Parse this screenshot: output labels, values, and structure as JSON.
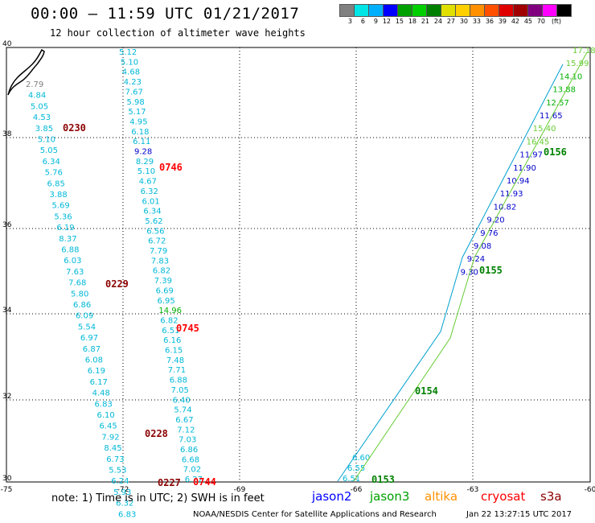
{
  "header": {
    "title": "00:00 – 11:59 UTC 01/21/2017",
    "subtitle": "12 hour collection of altimeter wave heights"
  },
  "legend": {
    "colors": [
      "#808080",
      "#00e5e5",
      "#00b0ff",
      "#0000ff",
      "#00a000",
      "#00d000",
      "#008000",
      "#e0e000",
      "#ffd000",
      "#ff9000",
      "#ff5000",
      "#e00000",
      "#a00000",
      "#800080",
      "#ff00ff",
      "#000000"
    ],
    "labels": [
      "3",
      "6",
      "9",
      "12",
      "15",
      "18",
      "21",
      "24",
      "27",
      "30",
      "33",
      "36",
      "39",
      "42",
      "45",
      "70",
      "(ft)"
    ]
  },
  "axes": {
    "x_ticks": [
      "-75",
      "-72",
      "-69",
      "-66",
      "-63",
      "-60"
    ],
    "y_ticks": [
      "40",
      "38",
      "36",
      "34",
      "32",
      "30"
    ]
  },
  "tracks": {
    "track_a": [
      "2.79",
      "4.84",
      "5.05",
      "4.53",
      "3.85",
      "5.10",
      "5.05",
      "6.34",
      "5.76",
      "6.85",
      "3.88",
      "5.69",
      "5.36",
      "6.19",
      "8.37",
      "6.88",
      "6.03",
      "7.63",
      "7.68",
      "5.80",
      "6.86",
      "6.09",
      "5.54",
      "6.97",
      "6.87",
      "6.08",
      "6.19",
      "6.17",
      "4.48",
      "6.83",
      "6.10",
      "6.45",
      "7.92",
      "8.45",
      "6.73",
      "5.53",
      "6.24",
      "5.93",
      "6.32",
      "6.83"
    ],
    "track_b": [
      "5.12",
      "5.10",
      "4.68",
      "4.23",
      "7.67",
      "5.98",
      "5.17",
      "4.95",
      "6.18",
      "6.11",
      "9.28",
      "8.29",
      "5.10",
      "4.67",
      "6.32",
      "6.01",
      "6.34",
      "5.62",
      "6.56",
      "6.72",
      "7.79",
      "7.83",
      "6.82",
      "7.39",
      "6.69",
      "6.95",
      "14.96",
      "6.82",
      "6.51",
      "6.16",
      "6.15",
      "7.48",
      "7.71",
      "6.88",
      "7.05",
      "6.40",
      "5.74",
      "6.67",
      "7.12",
      "7.03",
      "6.86",
      "6.68",
      "7.02",
      "6.27"
    ],
    "track_c_upper": [
      "17.18",
      "15.99",
      "14.10",
      "13.88",
      "12.57",
      "11.65",
      "15.40",
      "16.45",
      "11.97",
      "11.90",
      "10.94",
      "11.93",
      "10.82",
      "9.20",
      "9.76",
      "9.08",
      "9.24",
      "9.30"
    ],
    "track_c_lower": [
      "6.51",
      "6.55",
      "6.60"
    ]
  },
  "pass_times": [
    {
      "label": "0230",
      "color": "#8b0000"
    },
    {
      "label": "0746",
      "color": "#ff0000"
    },
    {
      "label": "0229",
      "color": "#8b0000"
    },
    {
      "label": "0745",
      "color": "#ff0000"
    },
    {
      "label": "0228",
      "color": "#8b0000"
    },
    {
      "label": "0227",
      "color": "#8b0000"
    },
    {
      "label": "0744",
      "color": "#ff0000"
    },
    {
      "label": "0156",
      "color": "#008000"
    },
    {
      "label": "0155",
      "color": "#008000"
    },
    {
      "label": "0154",
      "color": "#008000"
    },
    {
      "label": "0153",
      "color": "#008000"
    }
  ],
  "footer": {
    "note": "note: 1) Time is in UTC; 2) SWH is in feet",
    "satellites": [
      {
        "name": "jason2",
        "color": "#0000ff"
      },
      {
        "name": "jason3",
        "color": "#00a000"
      },
      {
        "name": "altika",
        "color": "#ff9000"
      },
      {
        "name": "cryosat",
        "color": "#ff0000"
      },
      {
        "name": "s3a",
        "color": "#8b0000"
      }
    ],
    "credit": "NOAA/NESDIS Center for Satellite Applications and Research",
    "timestamp": "Jan 22 13:27:15 UTC 2017"
  }
}
